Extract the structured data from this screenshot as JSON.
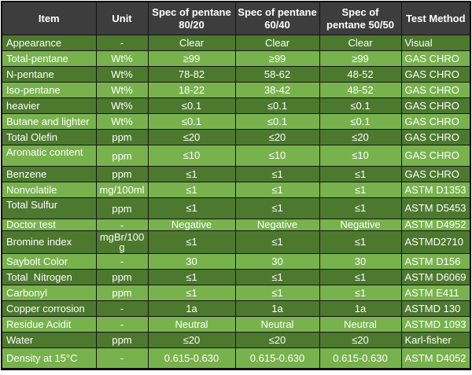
{
  "colors": {
    "header_background": "#3d3d3d",
    "row_dark_green": "#4d792f",
    "row_light_green": "#78b24d",
    "grid_border": "#141414",
    "text": "#ffffff"
  },
  "table": {
    "columns": [
      "Item",
      "Unit",
      "Spec of pentane 80/20",
      "Spec of pentane 60/40",
      "Spec of pentane 50/50",
      "Test Method"
    ],
    "rows": [
      {
        "item": "Appearance",
        "unit": "-",
        "spec_80_20": "Clear",
        "spec_60_40": "Clear",
        "spec_50_50": "Clear",
        "method": "Visual"
      },
      {
        "item": "Total-pentane",
        "unit": "Wt%",
        "spec_80_20": "≥99",
        "spec_60_40": "≥99",
        "spec_50_50": "≥99",
        "method": "GAS CHRO"
      },
      {
        "item": "N-pentane",
        "unit": "Wt%",
        "spec_80_20": "78-82",
        "spec_60_40": "58-62",
        "spec_50_50": "48-52",
        "method": "GAS CHRO"
      },
      {
        "item": "Iso-pentane",
        "unit": "Wt%",
        "spec_80_20": "18-22",
        "spec_60_40": "38-42",
        "spec_50_50": "48-52",
        "method": "GAS CHRO"
      },
      {
        "item": "heavier",
        "unit": "Wt%",
        "spec_80_20": "≤0.1",
        "spec_60_40": "≤0.1",
        "spec_50_50": "≤0.1",
        "method": "GAS CHRO"
      },
      {
        "item": "Butane and lighter",
        "unit": "Wt%",
        "spec_80_20": "≤0.1",
        "spec_60_40": "≤0.1",
        "spec_50_50": "≤0.1",
        "method": "GAS CHRO"
      },
      {
        "item": "Total Olefin",
        "unit": "ppm",
        "spec_80_20": "≤20",
        "spec_60_40": "≤20",
        "spec_50_50": "≤20",
        "method": "GAS CHRO"
      },
      {
        "item": "Aromatic content",
        "unit": "ppm",
        "spec_80_20": "≤10",
        "spec_60_40": "≤10",
        "spec_50_50": "≤10",
        "method": "GAS CHRO"
      },
      {
        "item": "Benzene",
        "unit": "ppm",
        "spec_80_20": "≤1",
        "spec_60_40": "≤1",
        "spec_50_50": "≤1",
        "method": "GAS CHRO"
      },
      {
        "item": "Nonvolatile",
        "unit": "mg/100ml",
        "spec_80_20": "≤1",
        "spec_60_40": "≤1",
        "spec_50_50": "≤1",
        "method": "ASTM D1353"
      },
      {
        "item": "Total Sulfur",
        "unit": "ppm",
        "spec_80_20": "≤1",
        "spec_60_40": "≤1",
        "spec_50_50": "≤1",
        "method": "ASTM D5453"
      },
      {
        "item": "Doctor test",
        "unit": "-",
        "spec_80_20": "Negative",
        "spec_60_40": "Negative",
        "spec_50_50": "Negative",
        "method": "ASTM D4952"
      },
      {
        "item": "Bromine index",
        "unit": "mgBr/100 g",
        "spec_80_20": "≤1",
        "spec_60_40": "≤1",
        "spec_50_50": "≤1",
        "method": "ASTMD2710"
      },
      {
        "item": "Saybolt Color",
        "unit": "-",
        "spec_80_20": "30",
        "spec_60_40": "30",
        "spec_50_50": "30",
        "method": "ASTM D156"
      },
      {
        "item": "Total  Nitrogen",
        "unit": "ppm",
        "spec_80_20": "≤1",
        "spec_60_40": "≤1",
        "spec_50_50": "≤1",
        "method": "ASTM D6069"
      },
      {
        "item": "Carbonyl",
        "unit": "ppm",
        "spec_80_20": "≤1",
        "spec_60_40": "≤1",
        "spec_50_50": "≤1",
        "method": "ASTM E411"
      },
      {
        "item": "Copper corrosion",
        "unit": "-",
        "spec_80_20": "1a",
        "spec_60_40": "1a",
        "spec_50_50": "1a",
        "method": "ASTMD 130"
      },
      {
        "item": "Residue Acidit",
        "unit": "-",
        "spec_80_20": "Neutral",
        "spec_60_40": "Neutral",
        "spec_50_50": "Neutral",
        "method": "ASTMD 1093"
      },
      {
        "item": "Water",
        "unit": "ppm",
        "spec_80_20": "≤20",
        "spec_60_40": "≤20",
        "spec_50_50": "≤20",
        "method": "Karl-fisher"
      },
      {
        "item": "Density at 15°C",
        "unit": "-",
        "spec_80_20": "0.615-0.630",
        "spec_60_40": "0.615-0.630",
        "spec_50_50": "0.615-0.630",
        "method": "ASTM D4052"
      }
    ]
  }
}
